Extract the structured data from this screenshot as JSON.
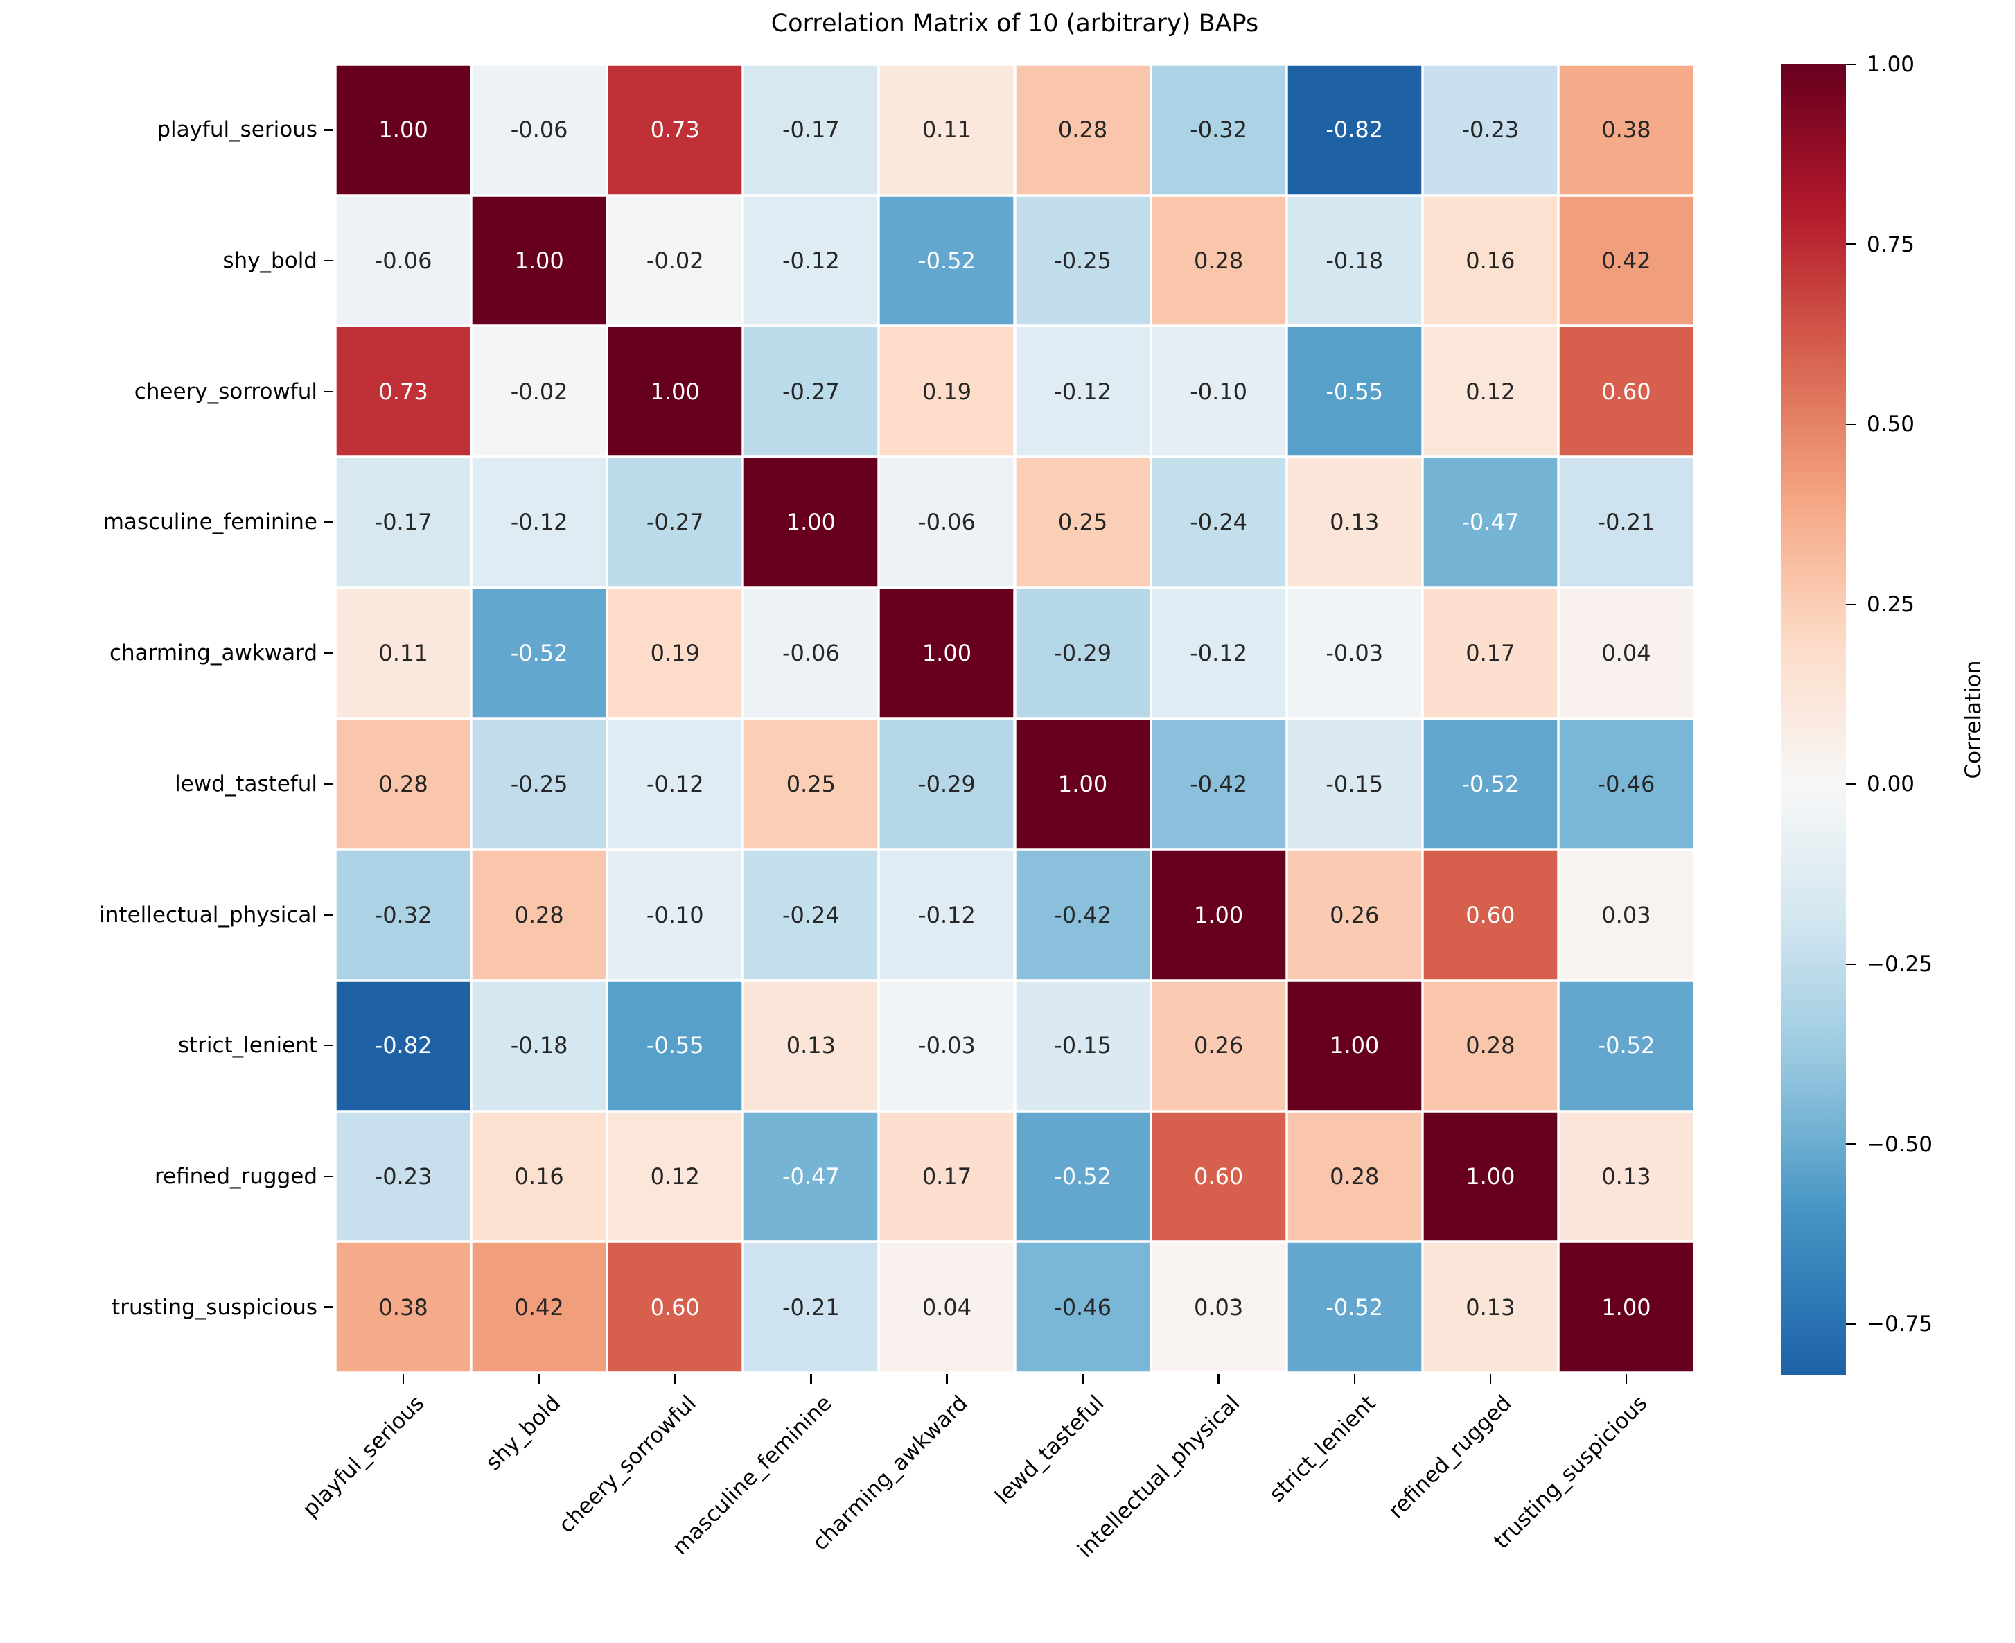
{
  "title": "Correlation Matrix of 10 (arbitrary) BAPs",
  "chart_data": {
    "type": "heatmap",
    "title": "Correlation Matrix of 10 (arbitrary) BAPs",
    "categories": [
      "playful_serious",
      "shy_bold",
      "cheery_sorrowful",
      "masculine_feminine",
      "charming_awkward",
      "lewd_tasteful",
      "intellectual_physical",
      "strict_lenient",
      "refined_rugged",
      "trusting_suspicious"
    ],
    "matrix": [
      [
        1.0,
        -0.06,
        0.73,
        -0.17,
        0.11,
        0.28,
        -0.32,
        -0.82,
        -0.23,
        0.38
      ],
      [
        -0.06,
        1.0,
        -0.02,
        -0.12,
        -0.52,
        -0.25,
        0.28,
        -0.18,
        0.16,
        0.42
      ],
      [
        0.73,
        -0.02,
        1.0,
        -0.27,
        0.19,
        -0.12,
        -0.1,
        -0.55,
        0.12,
        0.6
      ],
      [
        -0.17,
        -0.12,
        -0.27,
        1.0,
        -0.06,
        0.25,
        -0.24,
        0.13,
        -0.47,
        -0.21
      ],
      [
        0.11,
        -0.52,
        0.19,
        -0.06,
        1.0,
        -0.29,
        -0.12,
        -0.03,
        0.17,
        0.04
      ],
      [
        0.28,
        -0.25,
        -0.12,
        0.25,
        -0.29,
        1.0,
        -0.42,
        -0.15,
        -0.52,
        -0.46
      ],
      [
        -0.32,
        0.28,
        -0.1,
        -0.24,
        -0.12,
        -0.42,
        1.0,
        0.26,
        0.6,
        0.03
      ],
      [
        -0.82,
        -0.18,
        -0.55,
        0.13,
        -0.03,
        -0.15,
        0.26,
        1.0,
        0.28,
        -0.52
      ],
      [
        -0.23,
        0.16,
        0.12,
        -0.47,
        0.17,
        -0.52,
        0.6,
        0.28,
        1.0,
        0.13
      ],
      [
        0.38,
        0.42,
        0.6,
        -0.21,
        0.04,
        -0.46,
        0.03,
        -0.52,
        0.13,
        1.0
      ]
    ],
    "value_decimals": 2,
    "grid_line_color": "#ffffff",
    "colormap": {
      "name": "RdBu_r",
      "anchors": [
        "#053061",
        "#2166ac",
        "#4393c3",
        "#92c5de",
        "#d1e5f0",
        "#f7f7f7",
        "#fddbc7",
        "#f4a582",
        "#d6604d",
        "#b2182b",
        "#67001f"
      ],
      "norm_min": -1,
      "norm_max": 1
    },
    "annotation": {
      "dark_text_color": "#262626",
      "white_text_color": "#ffffff",
      "white_text_abs_threshold": 0.47
    },
    "colorbar": {
      "label": "Correlation",
      "tick_labels": [
        "1.00",
        "0.75",
        "0.50",
        "0.25",
        "0.00",
        "−0.25",
        "−0.50",
        "−0.75"
      ],
      "tick_values": [
        1.0,
        0.75,
        0.5,
        0.25,
        0.0,
        -0.25,
        -0.5,
        -0.75
      ],
      "display_max": 1.0,
      "display_min": -0.82
    },
    "legend_position": "right",
    "grid": false
  }
}
